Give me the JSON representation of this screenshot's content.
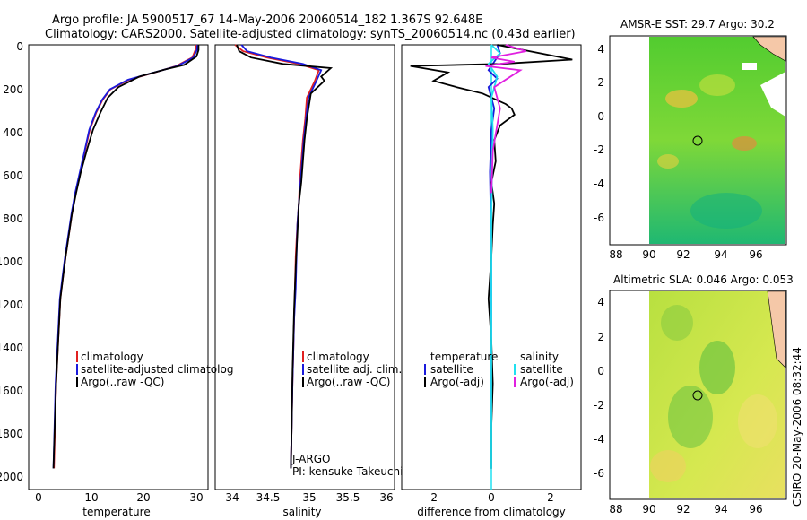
{
  "header": {
    "title_line1": "Argo profile: JA 5900517_67 14-May-2006 20060514_182 1.367S 92.648E",
    "title_line2": "Climatology: CARS2000. Satellite-adjusted climatology: synTS_20060514.nc (0.43d earlier)"
  },
  "side_credit": "CSIRO 20-May-2006 08:32:44",
  "colors": {
    "climatology": "#e02020",
    "satellite": "#1a1adc",
    "argo": "#000000",
    "salinity_sat": "#20e0f0",
    "salinity_argo": "#e020e0",
    "map_land": "#f5c8a8",
    "map_nodata": "#ffffff"
  },
  "chart_data": [
    {
      "type": "line",
      "name": "temperature-panel",
      "xlabel": "temperature",
      "ylabel": "",
      "xlim": [
        -2,
        32
      ],
      "ylim": [
        2100,
        0
      ],
      "xticks": [
        0,
        10,
        20,
        30
      ],
      "yticks": [
        0,
        200,
        400,
        600,
        800,
        1000,
        1200,
        1400,
        1600,
        1800,
        2000
      ],
      "legend": [
        "climatology",
        "satellite-adjusted climatolog",
        "Argo(..raw -QC)"
      ],
      "series": [
        {
          "name": "climatology",
          "color": "#e02020",
          "x": [
            29.8,
            29.6,
            29.0,
            26.0,
            22.0,
            17.0,
            13.5,
            12.0,
            10.8,
            9.6,
            8.7,
            7.8,
            6.9,
            6.2,
            5.6,
            5.0,
            4.5,
            4.0,
            3.6,
            3.2,
            2.8
          ],
          "y": [
            0,
            25,
            60,
            100,
            130,
            165,
            210,
            260,
            320,
            400,
            500,
            600,
            700,
            800,
            900,
            1000,
            1100,
            1200,
            1400,
            1600,
            2000
          ]
        },
        {
          "name": "satellite-adjusted climatology",
          "color": "#1a1adc",
          "x": [
            30.0,
            29.9,
            29.2,
            26.2,
            21.8,
            16.8,
            13.4,
            11.9,
            10.7,
            9.5,
            8.6,
            7.7,
            6.8,
            6.1,
            5.5,
            4.9,
            4.4,
            3.9,
            3.5,
            3.1,
            2.7
          ],
          "y": [
            0,
            25,
            60,
            100,
            130,
            165,
            210,
            260,
            320,
            400,
            500,
            600,
            700,
            800,
            900,
            1000,
            1100,
            1200,
            1400,
            1600,
            2000
          ]
        },
        {
          "name": "Argo",
          "color": "#000000",
          "x": [
            30.2,
            30.2,
            29.8,
            27.5,
            24.0,
            19.0,
            15.0,
            13.0,
            11.6,
            10.2,
            9.0,
            7.9,
            7.0,
            6.2,
            5.6,
            5.0,
            4.5,
            4.0,
            3.6,
            3.2,
            2.7
          ],
          "y": [
            0,
            25,
            55,
            95,
            115,
            150,
            200,
            250,
            320,
            400,
            500,
            600,
            700,
            800,
            900,
            1000,
            1100,
            1200,
            1400,
            1600,
            2000
          ]
        }
      ]
    },
    {
      "type": "line",
      "name": "salinity-panel",
      "xlabel": "salinity",
      "xlim": [
        33.85,
        36.1
      ],
      "ylim": [
        2100,
        0
      ],
      "xticks": [
        34,
        34.5,
        35,
        35.5,
        36
      ],
      "legend": [
        "climatology",
        "satellite adj. clim.",
        "Argo(..raw -QC)"
      ],
      "annotation": [
        "J-ARGO",
        "PI: kensuke Takeuchi"
      ],
      "series": [
        {
          "name": "climatology",
          "color": "#e02020",
          "x": [
            34.1,
            34.2,
            34.5,
            34.9,
            35.15,
            35.1,
            35.0,
            34.98,
            34.95,
            34.93,
            34.91,
            34.9,
            34.88,
            34.86,
            34.85,
            34.84,
            34.83,
            34.82,
            34.81,
            34.8
          ],
          "y": [
            0,
            30,
            60,
            90,
            120,
            170,
            250,
            350,
            450,
            550,
            650,
            750,
            850,
            1000,
            1150,
            1300,
            1450,
            1600,
            1800,
            2000
          ]
        },
        {
          "name": "satellite adj. clim.",
          "color": "#1a1adc",
          "x": [
            34.18,
            34.25,
            34.55,
            34.95,
            35.18,
            35.12,
            35.02,
            34.99,
            34.96,
            34.94,
            34.92,
            34.9,
            34.88,
            34.87,
            34.86,
            34.84,
            34.83,
            34.82,
            34.81,
            34.8
          ],
          "y": [
            0,
            30,
            60,
            90,
            120,
            170,
            250,
            350,
            450,
            550,
            650,
            750,
            850,
            1000,
            1150,
            1300,
            1450,
            1600,
            1800,
            2000
          ]
        },
        {
          "name": "Argo",
          "color": "#000000",
          "x": [
            34.12,
            34.15,
            34.3,
            34.7,
            35.3,
            35.18,
            35.22,
            35.05,
            35.0,
            34.97,
            34.95,
            34.93,
            34.9,
            34.88,
            34.86,
            34.84,
            34.83,
            34.82,
            34.81,
            34.8
          ],
          "y": [
            0,
            30,
            60,
            90,
            110,
            150,
            170,
            230,
            350,
            450,
            550,
            650,
            750,
            900,
            1050,
            1250,
            1400,
            1550,
            1800,
            2000
          ]
        }
      ]
    },
    {
      "type": "line",
      "name": "difference-panel",
      "xlabel": "difference from climatology",
      "xlim": [
        -3.1,
        3.1
      ],
      "ylim": [
        2100,
        0
      ],
      "xticks": [
        -2,
        0,
        2
      ],
      "legend": [
        "temperature",
        "satellite",
        "Argo(-adj)",
        "salinity",
        "satellite",
        "Argo(-adj)"
      ],
      "series": [
        {
          "name": "temperature satellite",
          "color": "#1a1adc",
          "x": [
            0.2,
            0.3,
            0.1,
            -0.1,
            0.2,
            -0.1,
            0.1,
            0.0,
            -0.05,
            0.0,
            0.0,
            0.0
          ],
          "y": [
            0,
            40,
            80,
            120,
            160,
            200,
            300,
            400,
            600,
            1000,
            1500,
            2000
          ]
        },
        {
          "name": "temperature Argo(-adj)",
          "color": "#000000",
          "x": [
            0.2,
            2.8,
            0.3,
            -2.8,
            -1.5,
            -2.0,
            -1.2,
            -0.3,
            0.5,
            0.7,
            0.8,
            0.3,
            0.1,
            0.15,
            0.0,
            0.1,
            0.05,
            0.0,
            -0.1,
            0.0,
            0.05,
            0.0,
            0.0
          ],
          "y": [
            0,
            70,
            90,
            100,
            130,
            170,
            200,
            230,
            280,
            300,
            330,
            380,
            450,
            550,
            650,
            750,
            850,
            1000,
            1200,
            1400,
            1600,
            1800,
            2000
          ]
        },
        {
          "name": "salinity satellite",
          "color": "#20e0f0",
          "x": [
            0.0,
            0.3,
            -0.1,
            0.2,
            0.0,
            0.05,
            0.0,
            0.0,
            0.0
          ],
          "y": [
            0,
            40,
            90,
            150,
            250,
            400,
            800,
            1400,
            2000
          ]
        },
        {
          "name": "salinity Argo(-adj)",
          "color": "#e020e0",
          "x": [
            0.5,
            1.2,
            0.0,
            0.8,
            -0.2,
            1.0,
            0.1,
            0.3,
            0.05,
            0.0
          ],
          "y": [
            0,
            30,
            60,
            80,
            100,
            120,
            200,
            300,
            500,
            700
          ]
        }
      ]
    },
    {
      "type": "heatmap",
      "name": "sst-map",
      "title": "AMSR-E SST: 29.7 Argo: 30.2",
      "xticks": [
        88,
        90,
        92,
        94,
        96
      ],
      "yticks": [
        4,
        2,
        0,
        -2,
        -4,
        -6
      ],
      "xlim": [
        87.2,
        97.6
      ],
      "ylim": [
        -7.4,
        4.7
      ],
      "marker": {
        "lon": 92.648,
        "lat": -1.367
      }
    },
    {
      "type": "heatmap",
      "name": "sla-map",
      "title": "Altimetric SLA: 0.046 Argo: 0.053",
      "xticks": [
        88,
        90,
        92,
        94,
        96
      ],
      "yticks": [
        4,
        2,
        0,
        -2,
        -4,
        -6
      ],
      "xlim": [
        87.2,
        97.6
      ],
      "ylim": [
        -7.4,
        4.7
      ],
      "marker": {
        "lon": 92.648,
        "lat": -1.367
      }
    }
  ]
}
